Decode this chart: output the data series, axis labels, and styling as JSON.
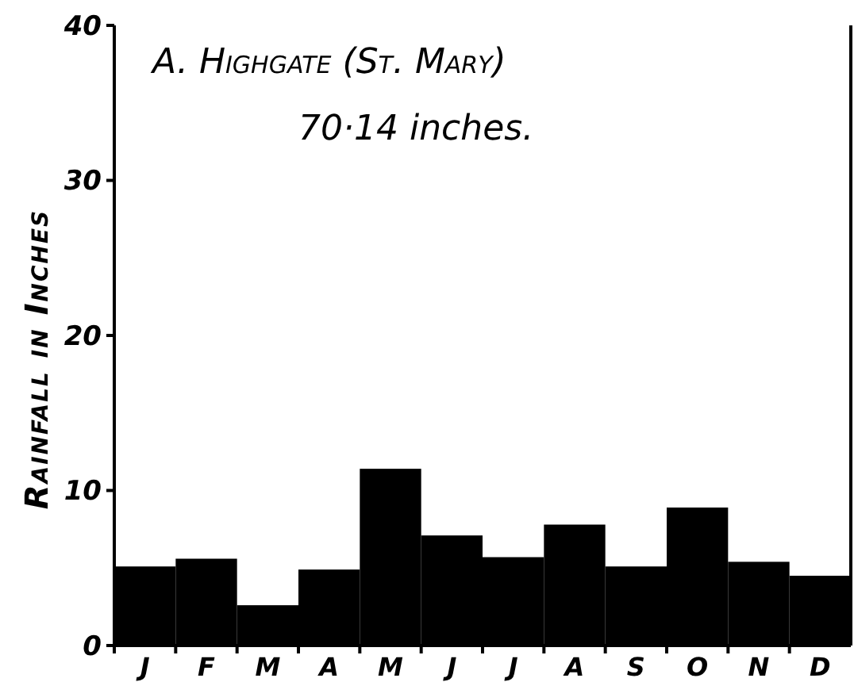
{
  "chart_data": {
    "type": "bar",
    "title": "A. Highgate (St. Mary)",
    "subtitle": "70·14 inches.",
    "ylabel": "Rainfall in Inches",
    "categories": [
      "J",
      "F",
      "M",
      "A",
      "M",
      "J",
      "J",
      "A",
      "S",
      "O",
      "N",
      "D"
    ],
    "values": [
      5.1,
      5.6,
      2.6,
      4.9,
      11.4,
      7.1,
      5.7,
      7.8,
      5.1,
      8.9,
      5.4,
      4.5
    ],
    "color": "#000000",
    "ylim": [
      0,
      40
    ],
    "yticks": [
      0,
      10,
      20,
      30,
      40
    ],
    "grid": false
  }
}
